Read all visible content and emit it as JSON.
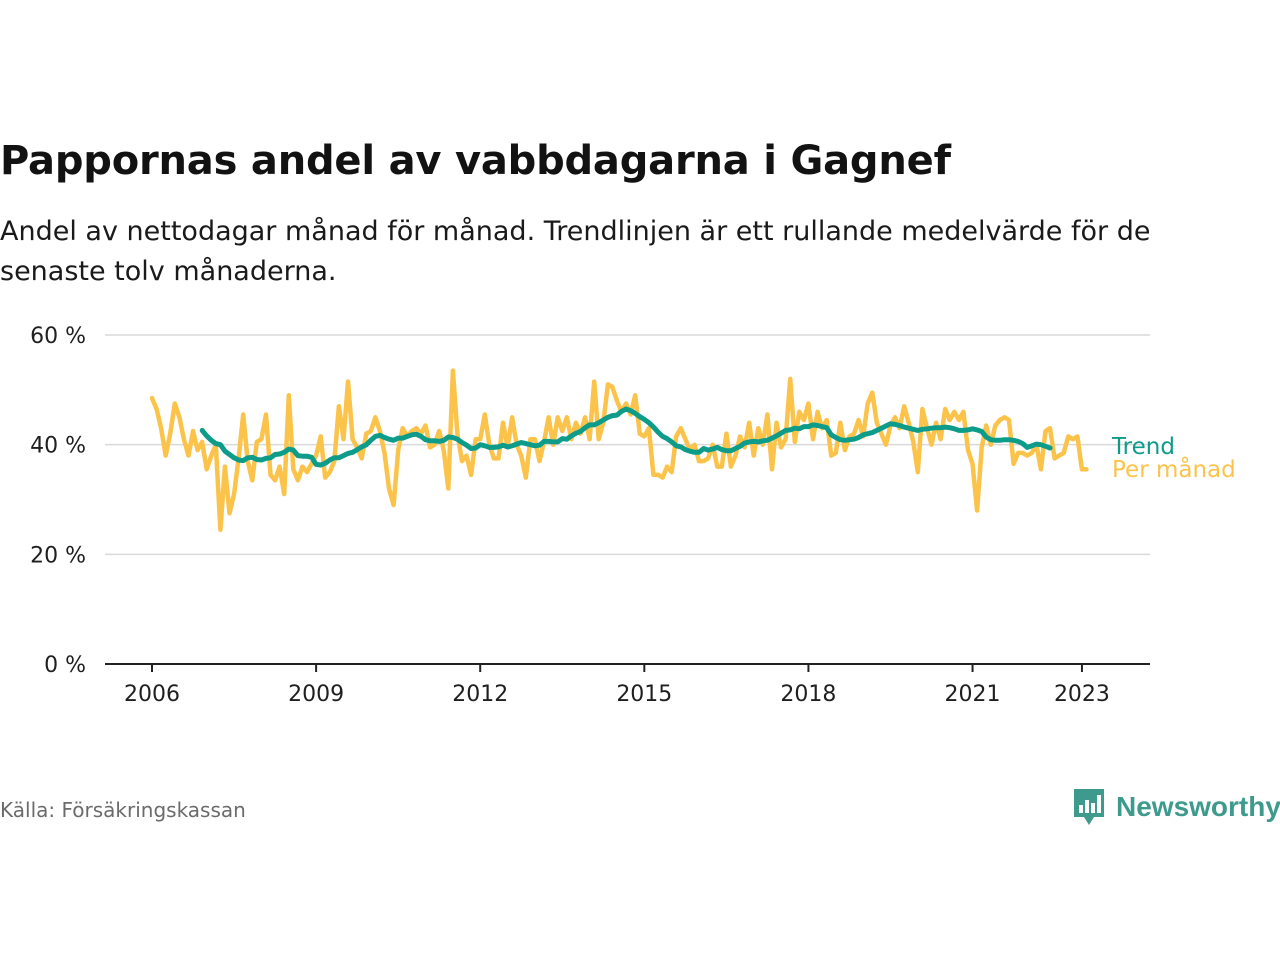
{
  "title": "Pappornas andel av vabbdagarna i Gagnef",
  "subtitle": "Andel av nettodagar månad för månad. Trendlinjen är ett rullande medelvärde för de senaste tolv månaderna.",
  "source": "Källa: Försäkringskassan",
  "brand": {
    "name": "Newsworthy",
    "icon": "newsworthy-logo-icon",
    "color": "#3f9a8e"
  },
  "chart_data": {
    "type": "line",
    "title": "Pappornas andel av vabbdagarna i Gagnef",
    "xlabel": "",
    "ylabel": "",
    "x_range": [
      2006.0,
      2023.33
    ],
    "ylim": [
      0,
      60
    ],
    "y_ticks": [
      0,
      20,
      40,
      60
    ],
    "y_tick_labels": [
      "0 %",
      "20 %",
      "40 %",
      "60 %"
    ],
    "x_ticks": [
      2006,
      2009,
      2012,
      2015,
      2018,
      2021,
      2023
    ],
    "x_tick_labels": [
      "2006",
      "2009",
      "2012",
      "2015",
      "2018",
      "2021",
      "2023"
    ],
    "grid": true,
    "legend": "direct labels at line ends",
    "series": [
      {
        "name": "Per månad",
        "color": "#fbc34a",
        "start": 2006.0,
        "step_months": 1,
        "values": [
          48.5,
          46.5,
          43,
          38,
          42,
          47.5,
          45,
          41,
          38,
          42.5,
          39,
          40.5,
          35.5,
          38,
          40,
          24.5,
          36,
          27.5,
          31,
          37.5,
          45.5,
          37,
          33.5,
          40.5,
          41,
          45.5,
          34.5,
          33.5,
          36,
          31,
          49,
          35.5,
          33.5,
          36,
          35,
          36.5,
          38,
          41.5,
          34,
          35,
          37,
          47,
          41,
          51.5,
          41,
          39.5,
          37.5,
          42,
          42.5,
          45,
          42.5,
          38.5,
          32,
          29,
          39,
          43,
          41.5,
          42.5,
          43,
          42,
          43.5,
          39.5,
          40,
          42.5,
          39,
          32,
          53.5,
          42,
          37,
          38,
          34.5,
          41,
          41,
          45.5,
          40,
          37.5,
          37.5,
          44,
          39.5,
          45,
          40,
          38,
          34,
          41,
          41,
          37,
          40.5,
          45,
          40,
          45,
          42.5,
          45,
          41,
          44,
          42,
          45,
          41,
          51.5,
          41,
          44,
          51,
          50.5,
          48,
          46,
          47.5,
          45.5,
          49,
          42,
          41.5,
          43,
          34.5,
          34.5,
          34,
          36,
          35,
          41.5,
          43,
          41,
          39,
          40,
          37,
          37,
          37.5,
          40,
          36,
          36,
          42,
          36,
          38,
          41.5,
          39.5,
          44,
          38,
          43,
          40,
          45.5,
          35.5,
          44,
          39.5,
          41,
          52,
          40.5,
          46,
          44.5,
          47.5,
          41,
          46,
          43,
          44.5,
          38,
          38.5,
          44,
          39,
          41.5,
          42,
          44.5,
          41.5,
          47.5,
          49.5,
          44,
          42,
          40,
          43.5,
          45,
          43,
          47,
          44,
          40.5,
          35,
          46.5,
          43,
          40,
          44,
          41,
          46.5,
          44.5,
          46,
          44.5,
          46,
          39,
          36.5,
          28,
          39.5,
          43.5,
          40,
          43.5,
          44.5,
          45,
          44.5,
          36.5,
          38.5,
          38.5,
          38,
          38.5,
          40,
          35.5,
          42.5,
          43,
          37.5,
          38,
          38.5,
          41.5,
          41,
          41.5,
          35.5,
          35.5
        ]
      },
      {
        "name": "Trend",
        "color": "#0d9b8a",
        "start": 2006.917,
        "step_months": 1,
        "values": [
          42.6,
          41.6,
          40.8,
          40.2,
          40.0,
          38.8,
          38.2,
          37.6,
          37.2,
          37.1,
          37.6,
          37.7,
          37.3,
          37.2,
          37.5,
          37.6,
          38.2,
          38.3,
          38.6,
          39.2,
          39.0,
          38.0,
          37.9,
          37.9,
          37.7,
          36.4,
          36.3,
          36.6,
          37.2,
          37.6,
          37.6,
          38.0,
          38.4,
          38.6,
          39.1,
          39.6,
          40.0,
          40.8,
          41.5,
          41.7,
          41.3,
          41.0,
          40.8,
          41.2,
          41.2,
          41.5,
          41.8,
          41.9,
          41.5,
          40.9,
          40.7,
          40.7,
          40.6,
          40.8,
          41.4,
          41.3,
          41.0,
          40.4,
          39.9,
          39.3,
          39.4,
          40.0,
          39.8,
          39.5,
          39.5,
          39.6,
          39.9,
          39.6,
          39.8,
          40.1,
          40.4,
          40.2,
          40.0,
          39.8,
          39.9,
          40.6,
          40.6,
          40.5,
          40.5,
          41.1,
          41.0,
          41.6,
          42.1,
          42.4,
          43.1,
          43.6,
          43.6,
          44.0,
          44.5,
          45.0,
          45.3,
          45.4,
          46.1,
          46.5,
          46.2,
          45.7,
          45.1,
          44.6,
          44.0,
          43.2,
          42.3,
          41.5,
          41.1,
          40.5,
          39.8,
          39.6,
          39.1,
          38.8,
          38.6,
          38.6,
          39.3,
          39.0,
          39.2,
          39.5,
          39.1,
          38.9,
          38.9,
          39.3,
          39.7,
          40.3,
          40.5,
          40.6,
          40.5,
          40.7,
          40.8,
          41.2,
          41.6,
          42.1,
          42.6,
          42.7,
          43.0,
          42.9,
          43.3,
          43.3,
          43.6,
          43.5,
          43.3,
          43.1,
          41.8,
          41.3,
          40.9,
          40.8,
          40.9,
          41.0,
          41.3,
          41.8,
          42.0,
          42.2,
          42.6,
          43.0,
          43.4,
          43.8,
          43.7,
          43.5,
          43.2,
          43.0,
          42.8,
          42.6,
          42.8,
          42.9,
          43.0,
          43.1,
          43.1,
          43.2,
          43.1,
          42.9,
          42.6,
          42.6,
          42.7,
          42.9,
          42.7,
          42.4,
          41.4,
          40.9,
          40.8,
          40.8,
          40.9,
          40.9,
          40.8,
          40.6,
          40.2,
          39.5,
          39.8,
          40.1,
          40.0,
          39.7,
          39.4
        ]
      }
    ]
  }
}
